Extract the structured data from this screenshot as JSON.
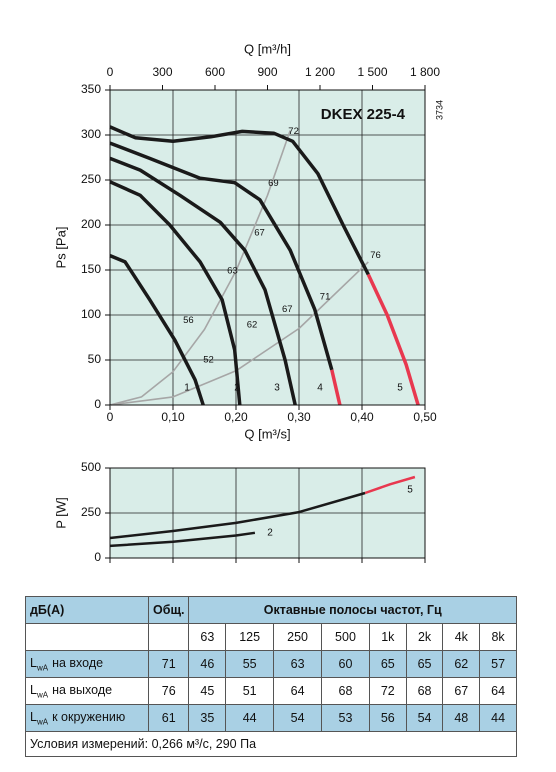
{
  "chart_data": [
    {
      "type": "line",
      "title": "DKEX 225-4",
      "side_note": "3734",
      "xlabel": "Q [m³/s]",
      "x2label": "Q [m³/h]",
      "ylabel": "Ps [Pa]",
      "xlim": [
        0,
        0.5
      ],
      "xticks": [
        0,
        {
          "value": 0.1,
          "label": "0,10"
        },
        {
          "value": 0.2,
          "label": "0,20"
        },
        {
          "value": 0.3,
          "label": "0,30"
        },
        {
          "value": 0.4,
          "label": "0,40"
        },
        {
          "value": 0.5,
          "label": "0,50"
        }
      ],
      "show_xtick_labels": true,
      "x2lim": [
        0,
        1800
      ],
      "x2ticks": [
        0,
        300,
        600,
        900,
        {
          "value": 1200,
          "label": "1 200"
        },
        {
          "value": 1500,
          "label": "1 500"
        },
        {
          "value": 1800,
          "label": "1 800"
        }
      ],
      "ylim": [
        0,
        350
      ],
      "yticks": [
        0,
        50,
        100,
        150,
        200,
        250,
        300,
        350
      ],
      "grid": true,
      "background": "#d9ede8",
      "series": [
        {
          "color": "#a6a6a6",
          "line_width": 1.6,
          "x": [
            0,
            0.05,
            0.1,
            0.15,
            0.2,
            0.25,
            0.286
          ],
          "values": [
            0,
            9,
            37,
            84,
            149,
            233,
            305
          ]
        },
        {
          "color": "#a6a6a6",
          "line_width": 1.6,
          "x": [
            0,
            0.1,
            0.2,
            0.3,
            0.41
          ],
          "values": [
            0,
            9,
            38,
            85,
            159
          ]
        },
        {
          "name": "1",
          "color": "#1a1a1a",
          "line_width": 3.5,
          "x": [
            0,
            0.024,
            0.063,
            0.103,
            0.135,
            0.148
          ],
          "values": [
            166,
            159,
            117,
            72,
            28,
            0
          ]
        },
        {
          "name": "2",
          "color": "#1a1a1a",
          "line_width": 3.5,
          "x": [
            0,
            0.048,
            0.095,
            0.143,
            0.178,
            0.198,
            0.206
          ],
          "values": [
            248,
            233,
            200,
            159,
            117,
            61,
            0
          ]
        },
        {
          "name": "3",
          "color": "#1a1a1a",
          "line_width": 3.5,
          "x": [
            0,
            0.048,
            0.111,
            0.175,
            0.214,
            0.246,
            0.278,
            0.294
          ],
          "values": [
            274,
            261,
            233,
            203,
            172,
            128,
            50,
            0
          ]
        },
        {
          "name": "4",
          "color": "#1a1a1a",
          "line_width": 3.5,
          "x": [
            0,
            0.063,
            0.143,
            0.198,
            0.238,
            0.286,
            0.325,
            0.352
          ],
          "values": [
            291,
            274,
            252,
            247,
            228,
            172,
            106,
            39
          ]
        },
        {
          "color": "#e8384f",
          "line_width": 3.5,
          "x": [
            0.352,
            0.365
          ],
          "values": [
            39,
            0
          ]
        },
        {
          "name": "5",
          "color": "#1a1a1a",
          "line_width": 3.5,
          "x": [
            0,
            0.04,
            0.1,
            0.16,
            0.21,
            0.26,
            0.29,
            0.33,
            0.37,
            0.41
          ],
          "values": [
            309,
            297,
            293,
            298,
            304,
            302,
            293,
            257,
            200,
            145
          ]
        },
        {
          "color": "#e8384f",
          "line_width": 3.5,
          "x": [
            0.41,
            0.44,
            0.47,
            0.489
          ],
          "values": [
            145,
            100,
            45,
            0
          ]
        }
      ],
      "annotations": [
        {
          "text": "72",
          "x": 0.283,
          "y": 304
        },
        {
          "text": "69",
          "x": 0.251,
          "y": 246
        },
        {
          "text": "67",
          "x": 0.229,
          "y": 191
        },
        {
          "text": "63",
          "x": 0.186,
          "y": 149
        },
        {
          "text": "56",
          "x": 0.116,
          "y": 94
        },
        {
          "text": "52",
          "x": 0.148,
          "y": 50
        },
        {
          "text": "67",
          "x": 0.273,
          "y": 106
        },
        {
          "text": "62",
          "x": 0.217,
          "y": 89
        },
        {
          "text": "71",
          "x": 0.333,
          "y": 120
        },
        {
          "text": "76",
          "x": 0.413,
          "y": 166
        }
      ]
    },
    {
      "type": "line",
      "ylabel": "P [W]",
      "xlim": [
        0,
        0.5
      ],
      "xticks": [
        0,
        0.1,
        0.2,
        0.3,
        0.4,
        0.5
      ],
      "show_xtick_labels": false,
      "ylim": [
        0,
        500
      ],
      "yticks": [
        0,
        250,
        500
      ],
      "grid": true,
      "background": "#d9ede8",
      "series": [
        {
          "name": "2",
          "color": "#1a1a1a",
          "line_width": 2.5,
          "x": [
            0,
            0.1,
            0.2,
            0.23
          ],
          "values": [
            67,
            90,
            125,
            140
          ]
        },
        {
          "name": "5",
          "color": "#1a1a1a",
          "line_width": 2.5,
          "x": [
            0,
            0.1,
            0.2,
            0.3,
            0.405
          ],
          "values": [
            111,
            150,
            195,
            255,
            361
          ]
        },
        {
          "color": "#e8384f",
          "line_width": 2.5,
          "x": [
            0.405,
            0.445,
            0.484
          ],
          "values": [
            361,
            410,
            450
          ]
        }
      ]
    }
  ],
  "table": {
    "header": {
      "label": "дБ(A)",
      "total": "Общ.",
      "bands_title": "Октавные полосы частот, Гц",
      "bands": [
        63,
        125,
        250,
        500,
        "1k",
        "2k",
        "4k",
        "8k"
      ]
    },
    "rows": [
      {
        "symbol": "L",
        "subscript": "wA",
        "label": "на входе",
        "total": 71,
        "values": [
          46,
          55,
          63,
          60,
          65,
          65,
          62,
          57
        ]
      },
      {
        "symbol": "L",
        "subscript": "wA",
        "label": "на выходе",
        "total": 76,
        "values": [
          45,
          51,
          64,
          68,
          72,
          68,
          67,
          64
        ]
      },
      {
        "symbol": "L",
        "subscript": "wA",
        "label": "к окружению",
        "total": 61,
        "values": [
          35,
          44,
          54,
          53,
          56,
          54,
          48,
          44
        ]
      }
    ],
    "note": "Условия измерений: 0,266 м³/с, 290 Па"
  }
}
